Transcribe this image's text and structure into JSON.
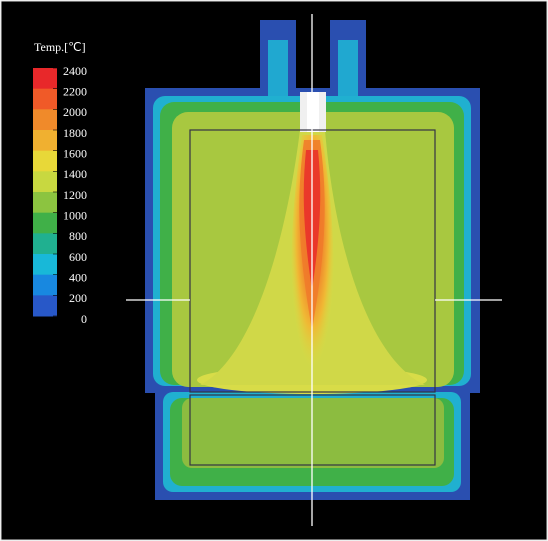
{
  "legend": {
    "title": "Temp.[℃]",
    "ticks": [
      2400,
      2200,
      2000,
      1800,
      1600,
      1400,
      1200,
      1000,
      800,
      600,
      400,
      200,
      0
    ],
    "colors": [
      "#e8282a",
      "#f05a28",
      "#f08a2a",
      "#f0b030",
      "#e8d838",
      "#c8d840",
      "#8cc440",
      "#40b048",
      "#20b090",
      "#18b8d8",
      "#1888e0",
      "#2858c8"
    ]
  }
}
